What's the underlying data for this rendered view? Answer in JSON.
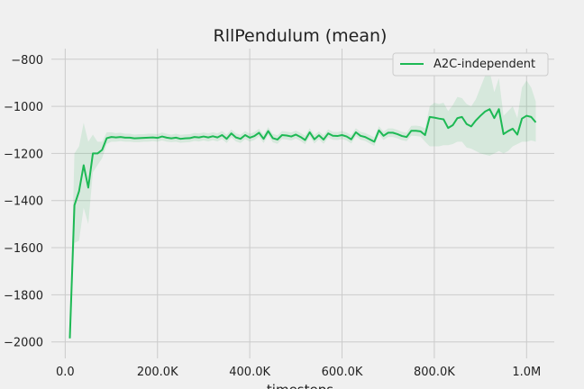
{
  "chart_data": {
    "type": "line",
    "title": "RllPendulum (mean)",
    "xlabel": "timesteps",
    "ylabel": "",
    "xlim": [
      -30000,
      1060000
    ],
    "ylim": [
      -2070,
      -755
    ],
    "x_ticks": [
      0,
      200000,
      400000,
      600000,
      800000,
      1000000
    ],
    "x_tick_labels": [
      "0.0",
      "200.0K",
      "400.0K",
      "600.0K",
      "800.0K",
      "1.0M"
    ],
    "y_ticks": [
      -2000,
      -1800,
      -1600,
      -1400,
      -1200,
      -1000,
      -800
    ],
    "y_tick_labels": [
      "−2000",
      "−1800",
      "−1600",
      "−1400",
      "−1200",
      "−1000",
      "−800"
    ],
    "grid": true,
    "legend_position": "top-right",
    "colors": {
      "series": "#1db954",
      "band": "#1db954"
    },
    "series": [
      {
        "name": "A2C-independent",
        "x": [
          10000,
          20000,
          30000,
          40000,
          50000,
          60000,
          70000,
          80000,
          90000,
          100000,
          110000,
          120000,
          130000,
          140000,
          150000,
          160000,
          170000,
          180000,
          190000,
          200000,
          210000,
          220000,
          230000,
          240000,
          250000,
          260000,
          270000,
          280000,
          290000,
          300000,
          310000,
          320000,
          330000,
          340000,
          350000,
          360000,
          370000,
          380000,
          390000,
          400000,
          410000,
          420000,
          430000,
          440000,
          450000,
          460000,
          470000,
          480000,
          490000,
          500000,
          510000,
          520000,
          530000,
          540000,
          550000,
          560000,
          570000,
          580000,
          590000,
          600000,
          610000,
          620000,
          630000,
          640000,
          650000,
          660000,
          670000,
          680000,
          690000,
          700000,
          710000,
          720000,
          730000,
          740000,
          750000,
          760000,
          770000,
          780000,
          790000,
          800000,
          810000,
          820000,
          830000,
          840000,
          850000,
          860000,
          870000,
          880000,
          890000,
          900000,
          910000,
          920000,
          930000,
          940000,
          950000,
          960000,
          970000,
          980000,
          990000,
          1000000,
          1010000,
          1020000
        ],
        "y": [
          -1985,
          -1420,
          -1360,
          -1250,
          -1345,
          -1200,
          -1200,
          -1185,
          -1135,
          -1130,
          -1132,
          -1130,
          -1133,
          -1133,
          -1136,
          -1135,
          -1134,
          -1133,
          -1132,
          -1134,
          -1128,
          -1133,
          -1136,
          -1133,
          -1138,
          -1136,
          -1135,
          -1130,
          -1132,
          -1128,
          -1132,
          -1127,
          -1132,
          -1122,
          -1138,
          -1115,
          -1132,
          -1138,
          -1122,
          -1133,
          -1126,
          -1112,
          -1138,
          -1105,
          -1135,
          -1141,
          -1122,
          -1124,
          -1128,
          -1120,
          -1130,
          -1143,
          -1110,
          -1140,
          -1123,
          -1141,
          -1115,
          -1125,
          -1126,
          -1122,
          -1128,
          -1140,
          -1110,
          -1125,
          -1130,
          -1140,
          -1150,
          -1102,
          -1125,
          -1112,
          -1112,
          -1118,
          -1126,
          -1130,
          -1104,
          -1104,
          -1106,
          -1122,
          -1045,
          -1048,
          -1052,
          -1055,
          -1092,
          -1080,
          -1050,
          -1045,
          -1075,
          -1085,
          -1060,
          -1040,
          -1022,
          -1012,
          -1050,
          -1012,
          -1118,
          -1105,
          -1095,
          -1120,
          -1052,
          -1040,
          -1045,
          -1068
        ],
        "band": [
          [
            -2000,
            -1980
          ],
          [
            -1580,
            -1200
          ],
          [
            -1570,
            -1170
          ],
          [
            -1430,
            -1070
          ],
          [
            -1500,
            -1150
          ],
          [
            -1280,
            -1120
          ],
          [
            -1250,
            -1150
          ],
          [
            -1220,
            -1150
          ],
          [
            -1160,
            -1110
          ],
          [
            -1150,
            -1110
          ],
          [
            -1150,
            -1114
          ],
          [
            -1148,
            -1112
          ],
          [
            -1150,
            -1116
          ],
          [
            -1150,
            -1116
          ],
          [
            -1152,
            -1120
          ],
          [
            -1152,
            -1118
          ],
          [
            -1150,
            -1118
          ],
          [
            -1150,
            -1116
          ],
          [
            -1148,
            -1116
          ],
          [
            -1150,
            -1118
          ],
          [
            -1145,
            -1111
          ],
          [
            -1150,
            -1116
          ],
          [
            -1152,
            -1120
          ],
          [
            -1150,
            -1116
          ],
          [
            -1155,
            -1121
          ],
          [
            -1153,
            -1119
          ],
          [
            -1152,
            -1118
          ],
          [
            -1147,
            -1113
          ],
          [
            -1149,
            -1115
          ],
          [
            -1145,
            -1111
          ],
          [
            -1149,
            -1115
          ],
          [
            -1144,
            -1110
          ],
          [
            -1149,
            -1115
          ],
          [
            -1139,
            -1105
          ],
          [
            -1156,
            -1120
          ],
          [
            -1132,
            -1098
          ],
          [
            -1149,
            -1115
          ],
          [
            -1156,
            -1120
          ],
          [
            -1139,
            -1105
          ],
          [
            -1150,
            -1116
          ],
          [
            -1143,
            -1109
          ],
          [
            -1129,
            -1095
          ],
          [
            -1156,
            -1120
          ],
          [
            -1122,
            -1088
          ],
          [
            -1153,
            -1117
          ],
          [
            -1159,
            -1123
          ],
          [
            -1139,
            -1105
          ],
          [
            -1141,
            -1107
          ],
          [
            -1145,
            -1111
          ],
          [
            -1137,
            -1103
          ],
          [
            -1147,
            -1113
          ],
          [
            -1161,
            -1125
          ],
          [
            -1127,
            -1093
          ],
          [
            -1158,
            -1122
          ],
          [
            -1140,
            -1106
          ],
          [
            -1159,
            -1123
          ],
          [
            -1132,
            -1098
          ],
          [
            -1142,
            -1108
          ],
          [
            -1143,
            -1109
          ],
          [
            -1139,
            -1105
          ],
          [
            -1145,
            -1111
          ],
          [
            -1158,
            -1122
          ],
          [
            -1127,
            -1093
          ],
          [
            -1142,
            -1108
          ],
          [
            -1147,
            -1113
          ],
          [
            -1158,
            -1122
          ],
          [
            -1168,
            -1132
          ],
          [
            -1120,
            -1084
          ],
          [
            -1143,
            -1107
          ],
          [
            -1130,
            -1094
          ],
          [
            -1130,
            -1094
          ],
          [
            -1136,
            -1100
          ],
          [
            -1144,
            -1108
          ],
          [
            -1148,
            -1112
          ],
          [
            -1125,
            -1083
          ],
          [
            -1126,
            -1082
          ],
          [
            -1128,
            -1084
          ],
          [
            -1150,
            -1094
          ],
          [
            -1170,
            -1000
          ],
          [
            -1170,
            -985
          ],
          [
            -1170,
            -990
          ],
          [
            -1165,
            -985
          ],
          [
            -1165,
            -1020
          ],
          [
            -1160,
            -995
          ],
          [
            -1150,
            -960
          ],
          [
            -1150,
            -965
          ],
          [
            -1175,
            -990
          ],
          [
            -1180,
            -1000
          ],
          [
            -1190,
            -970
          ],
          [
            -1200,
            -920
          ],
          [
            -1205,
            -870
          ],
          [
            -1210,
            -850
          ],
          [
            -1200,
            -940
          ],
          [
            -1190,
            -880
          ],
          [
            -1200,
            -1040
          ],
          [
            -1190,
            -1020
          ],
          [
            -1170,
            -1000
          ],
          [
            -1160,
            -1050
          ],
          [
            -1150,
            -920
          ],
          [
            -1150,
            -890
          ],
          [
            -1145,
            -920
          ],
          [
            -1150,
            -980
          ]
        ]
      }
    ]
  }
}
